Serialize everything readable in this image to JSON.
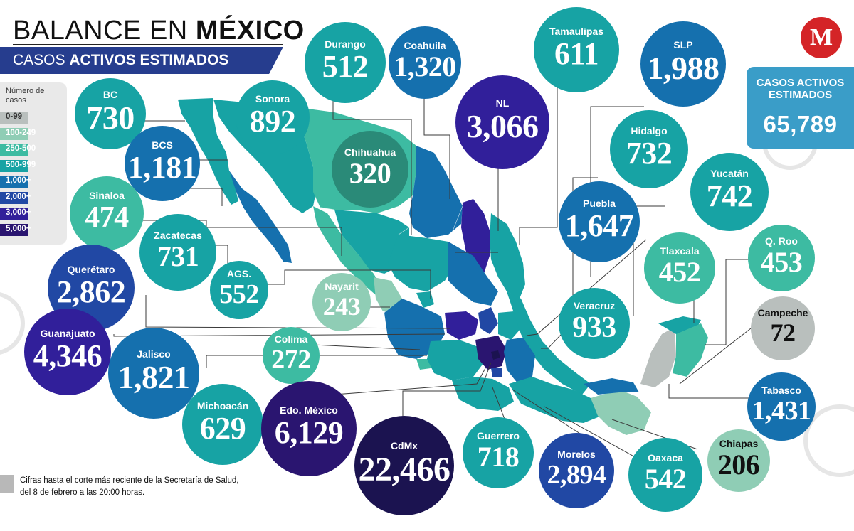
{
  "header": {
    "title_part1": "BALANCE EN",
    "title_part2": "MÉXICO",
    "subtitle_part1": "CASOS",
    "subtitle_part2": "ACTIVOS ESTIMADOS"
  },
  "legend": {
    "title": "Número de casos",
    "items": [
      {
        "label": "0-99",
        "color": "#b9bfbd"
      },
      {
        "label": "100-249",
        "color": "#8fcdb5"
      },
      {
        "label": "250-500",
        "color": "#3dbba2"
      },
      {
        "label": "500-999",
        "color": "#17a3a4"
      },
      {
        "label": "1,000+",
        "color": "#1570ae"
      },
      {
        "label": "2,000+",
        "color": "#2148a4"
      },
      {
        "label": "3,000+",
        "color": "#311f9a"
      },
      {
        "label": "5,000+",
        "color": "#2a1570"
      }
    ]
  },
  "logo": {
    "letter": "M"
  },
  "total": {
    "label_line1": "CASOS ACTIVOS",
    "label_line2": "ESTIMADOS",
    "value": "65,789"
  },
  "footnote": "Cifras hasta el corte más reciente de la Secretaría de Salud, del 8 de febrero a las 20:00 horas.",
  "states": [
    {
      "name": "BC",
      "value": "730",
      "color": "#17a3a4"
    },
    {
      "name": "Sonora",
      "value": "892",
      "color": "#17a3a4"
    },
    {
      "name": "Durango",
      "value": "512",
      "color": "#17a3a4"
    },
    {
      "name": "Coahuila",
      "value": "1,320",
      "color": "#1570ae"
    },
    {
      "name": "Tamaulipas",
      "value": "611",
      "color": "#17a3a4"
    },
    {
      "name": "SLP",
      "value": "1,988",
      "color": "#1570ae"
    },
    {
      "name": "NL",
      "value": "3,066",
      "color": "#311f9a"
    },
    {
      "name": "BCS",
      "value": "1,181",
      "color": "#1570ae"
    },
    {
      "name": "Chihuahua",
      "value": "320",
      "color": "#2a8a78"
    },
    {
      "name": "Hidalgo",
      "value": "732",
      "color": "#17a3a4"
    },
    {
      "name": "Yucatán",
      "value": "742",
      "color": "#17a3a4"
    },
    {
      "name": "Sinaloa",
      "value": "474",
      "color": "#3dbba2"
    },
    {
      "name": "Zacatecas",
      "value": "731",
      "color": "#17a3a4"
    },
    {
      "name": "Puebla",
      "value": "1,647",
      "color": "#1570ae"
    },
    {
      "name": "Tlaxcala",
      "value": "452",
      "color": "#3dbba2"
    },
    {
      "name": "Q. Roo",
      "value": "453",
      "color": "#3dbba2"
    },
    {
      "name": "Querétaro",
      "value": "2,862",
      "color": "#2148a4"
    },
    {
      "name": "AGS.",
      "value": "552",
      "color": "#17a3a4"
    },
    {
      "name": "Nayarit",
      "value": "243",
      "color": "#8fcdb5"
    },
    {
      "name": "Veracruz",
      "value": "933",
      "color": "#17a3a4"
    },
    {
      "name": "Campeche",
      "value": "72",
      "color": "#b9bfbd"
    },
    {
      "name": "Guanajuato",
      "value": "4,346",
      "color": "#311f9a"
    },
    {
      "name": "Jalisco",
      "value": "1,821",
      "color": "#1570ae"
    },
    {
      "name": "Colima",
      "value": "272",
      "color": "#3dbba2"
    },
    {
      "name": "Tabasco",
      "value": "1,431",
      "color": "#1570ae"
    },
    {
      "name": "Michoacán",
      "value": "629",
      "color": "#17a3a4"
    },
    {
      "name": "Edo. México",
      "value": "6,129",
      "color": "#2a1570"
    },
    {
      "name": "CdMx",
      "value": "22,466",
      "color": "#1b1350"
    },
    {
      "name": "Guerrero",
      "value": "718",
      "color": "#17a3a4"
    },
    {
      "name": "Morelos",
      "value": "2,894",
      "color": "#2148a4"
    },
    {
      "name": "Oaxaca",
      "value": "542",
      "color": "#17a3a4"
    },
    {
      "name": "Chiapas",
      "value": "206",
      "color": "#8fcdb5"
    }
  ]
}
